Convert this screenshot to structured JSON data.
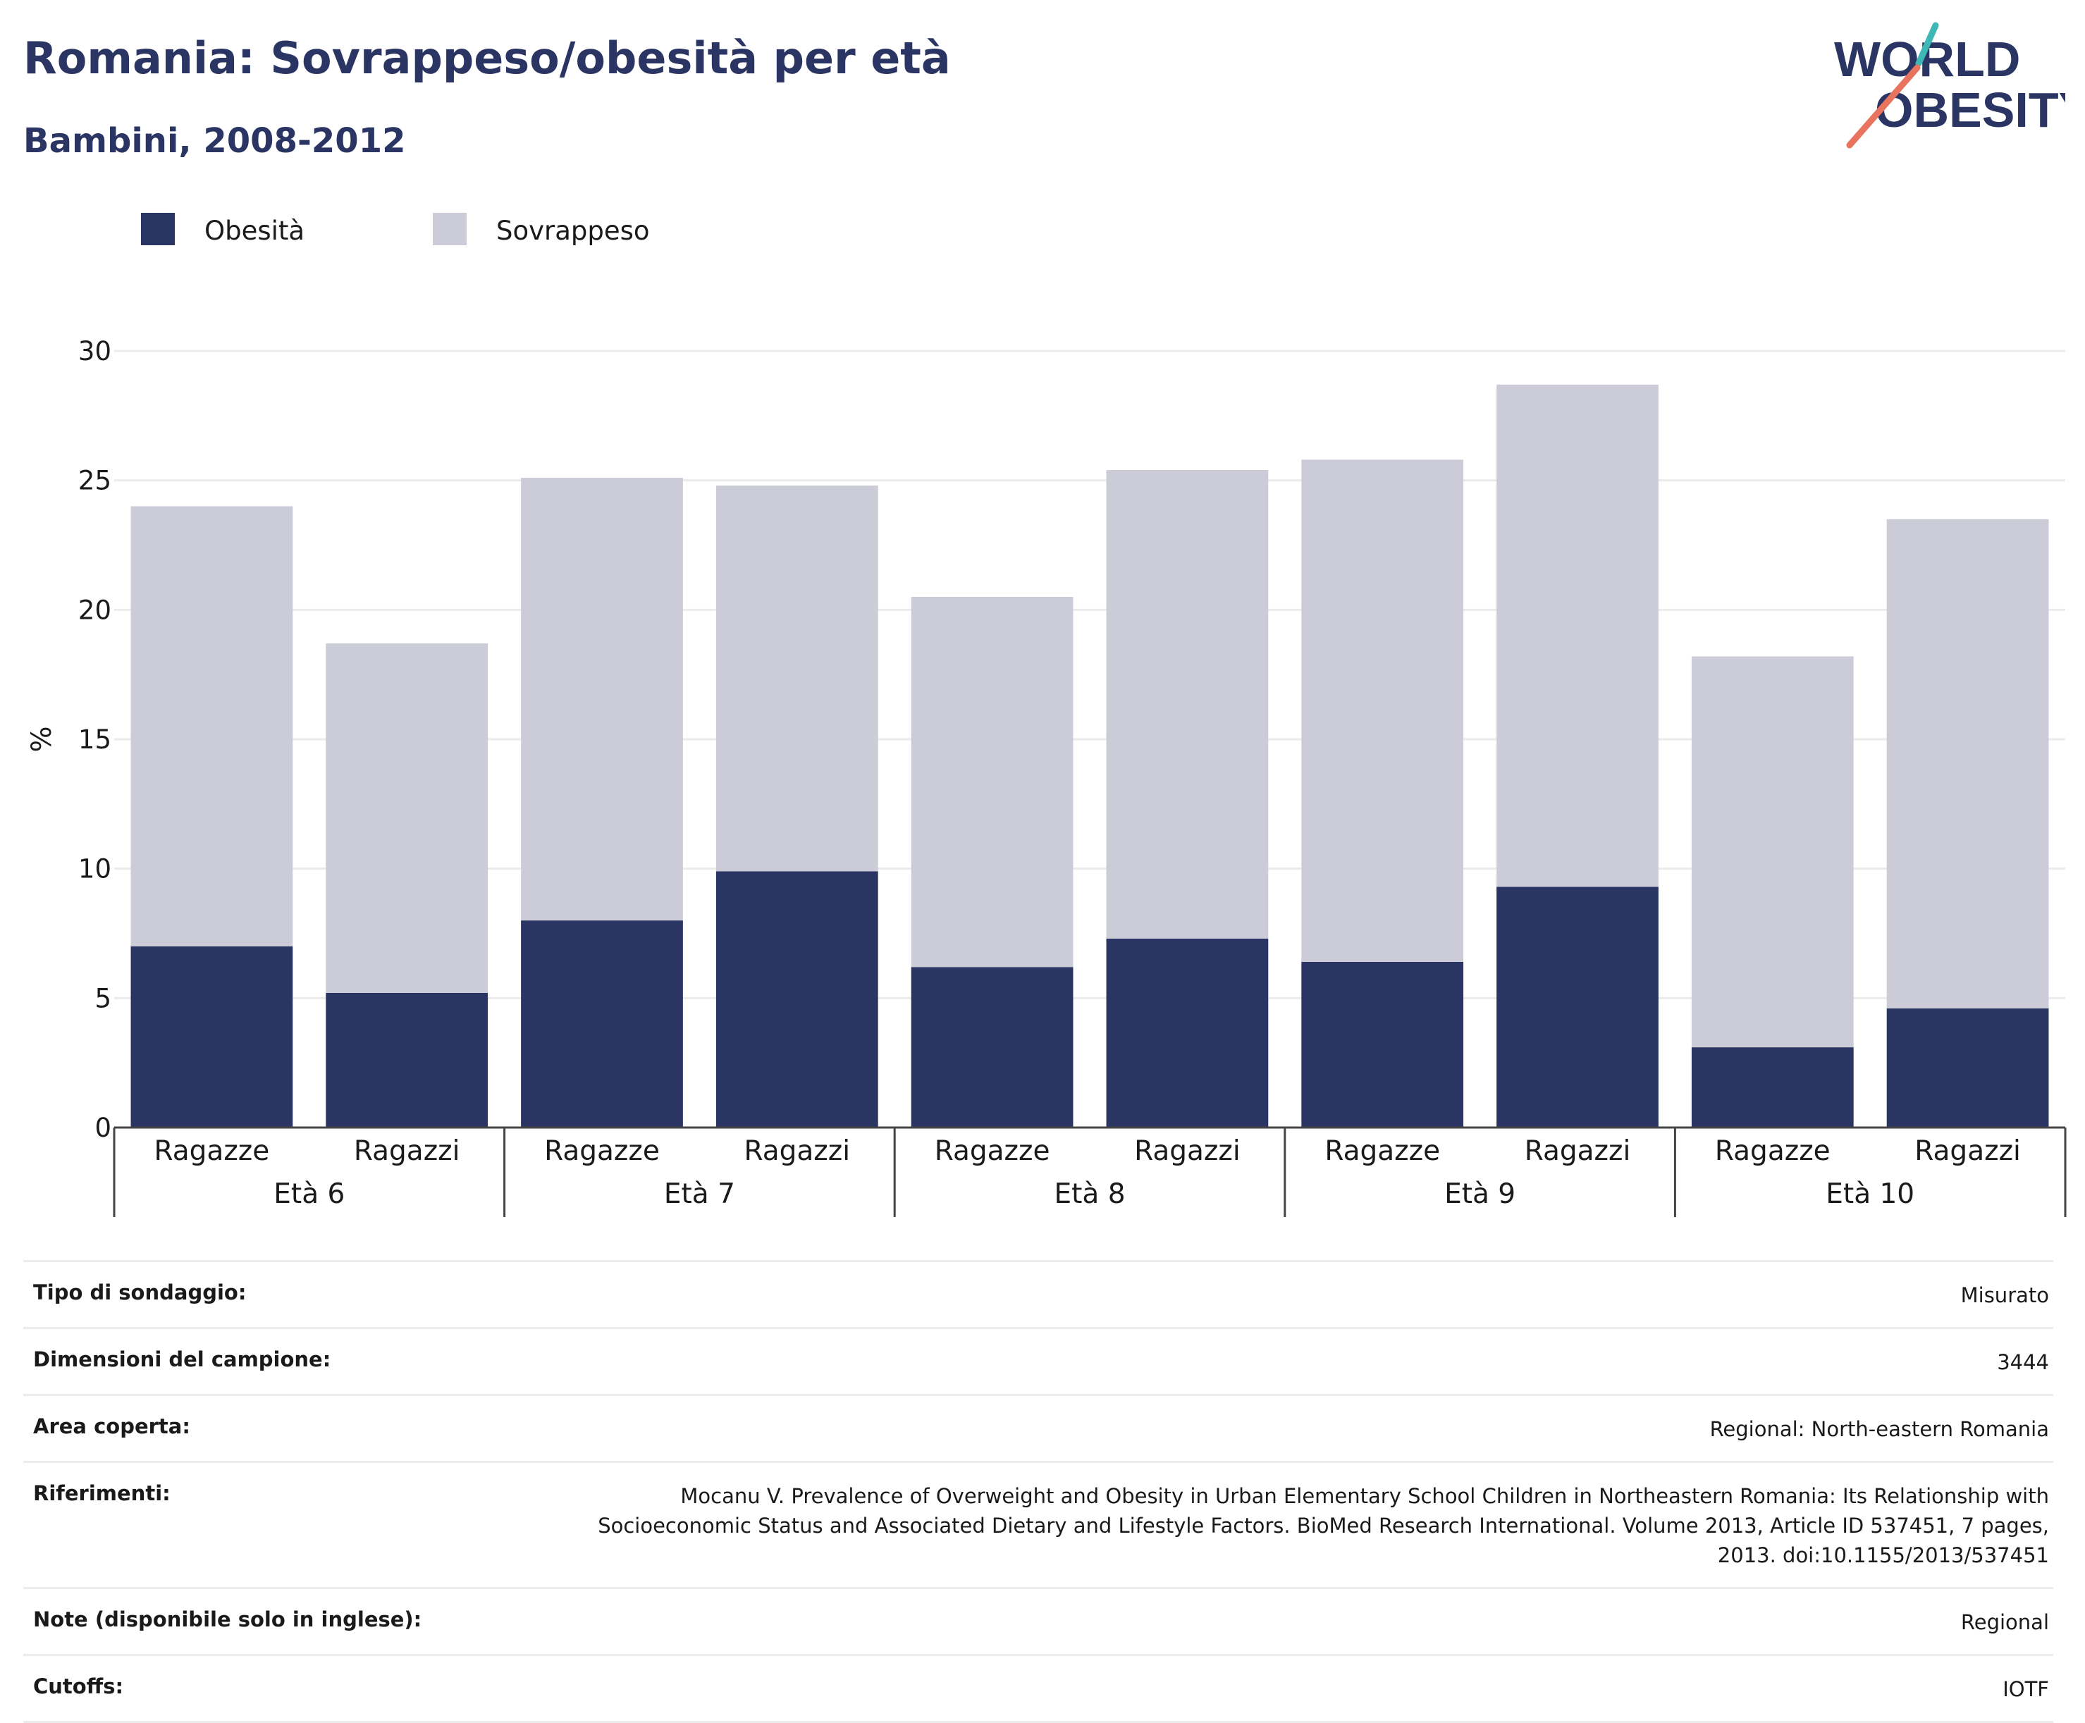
{
  "header": {
    "title": "Romania: Sovrappeso/obesità per età",
    "subtitle": "Bambini, 2008-2012"
  },
  "logo": {
    "line1": "WORLD",
    "line2": "OBESITY"
  },
  "colors": {
    "obesity": "#2a3563",
    "overweight": "#cbccd8",
    "grid": "#ebebeb",
    "axis": "#444444",
    "logo_accent_top": "#3db8b5",
    "logo_accent_bottom": "#e8735e"
  },
  "chart_data": {
    "type": "bar",
    "stacked": true,
    "ylabel": "%",
    "ylim": [
      0,
      30
    ],
    "yticks": [
      0,
      5,
      10,
      15,
      20,
      25,
      30
    ],
    "grid": true,
    "legend_position": "top-left",
    "groups": [
      "Età 6",
      "Età 7",
      "Età 8",
      "Età 9",
      "Età 10"
    ],
    "categories": [
      "Ragazze",
      "Ragazzi",
      "Ragazze",
      "Ragazzi",
      "Ragazze",
      "Ragazzi",
      "Ragazze",
      "Ragazzi",
      "Ragazze",
      "Ragazzi"
    ],
    "series": [
      {
        "name": "Obesità",
        "values": [
          7.0,
          5.2,
          8.0,
          9.9,
          6.2,
          7.3,
          6.4,
          9.3,
          3.1,
          4.6
        ]
      },
      {
        "name": "Sovrappeso",
        "values": [
          17.0,
          13.5,
          17.1,
          14.9,
          14.3,
          18.1,
          19.4,
          19.4,
          15.1,
          18.9
        ]
      }
    ]
  },
  "info": [
    {
      "label": "Tipo di sondaggio:",
      "value": "Misurato"
    },
    {
      "label": "Dimensioni del campione:",
      "value": "3444"
    },
    {
      "label": "Area coperta:",
      "value": "Regional: North-eastern Romania"
    },
    {
      "label": "Riferimenti:",
      "value": "Mocanu V. Prevalence of Overweight and Obesity in Urban Elementary School Children in Northeastern Romania: Its Relationship with Socioeconomic Status and Associated Dietary and Lifestyle Factors. BioMed Research International. Volume 2013, Article ID 537451, 7 pages, 2013. doi:10.1155/2013/537451"
    },
    {
      "label": "Note (disponibile solo in inglese):",
      "value": "Regional"
    },
    {
      "label": "Cutoffs:",
      "value": "IOTF"
    }
  ]
}
